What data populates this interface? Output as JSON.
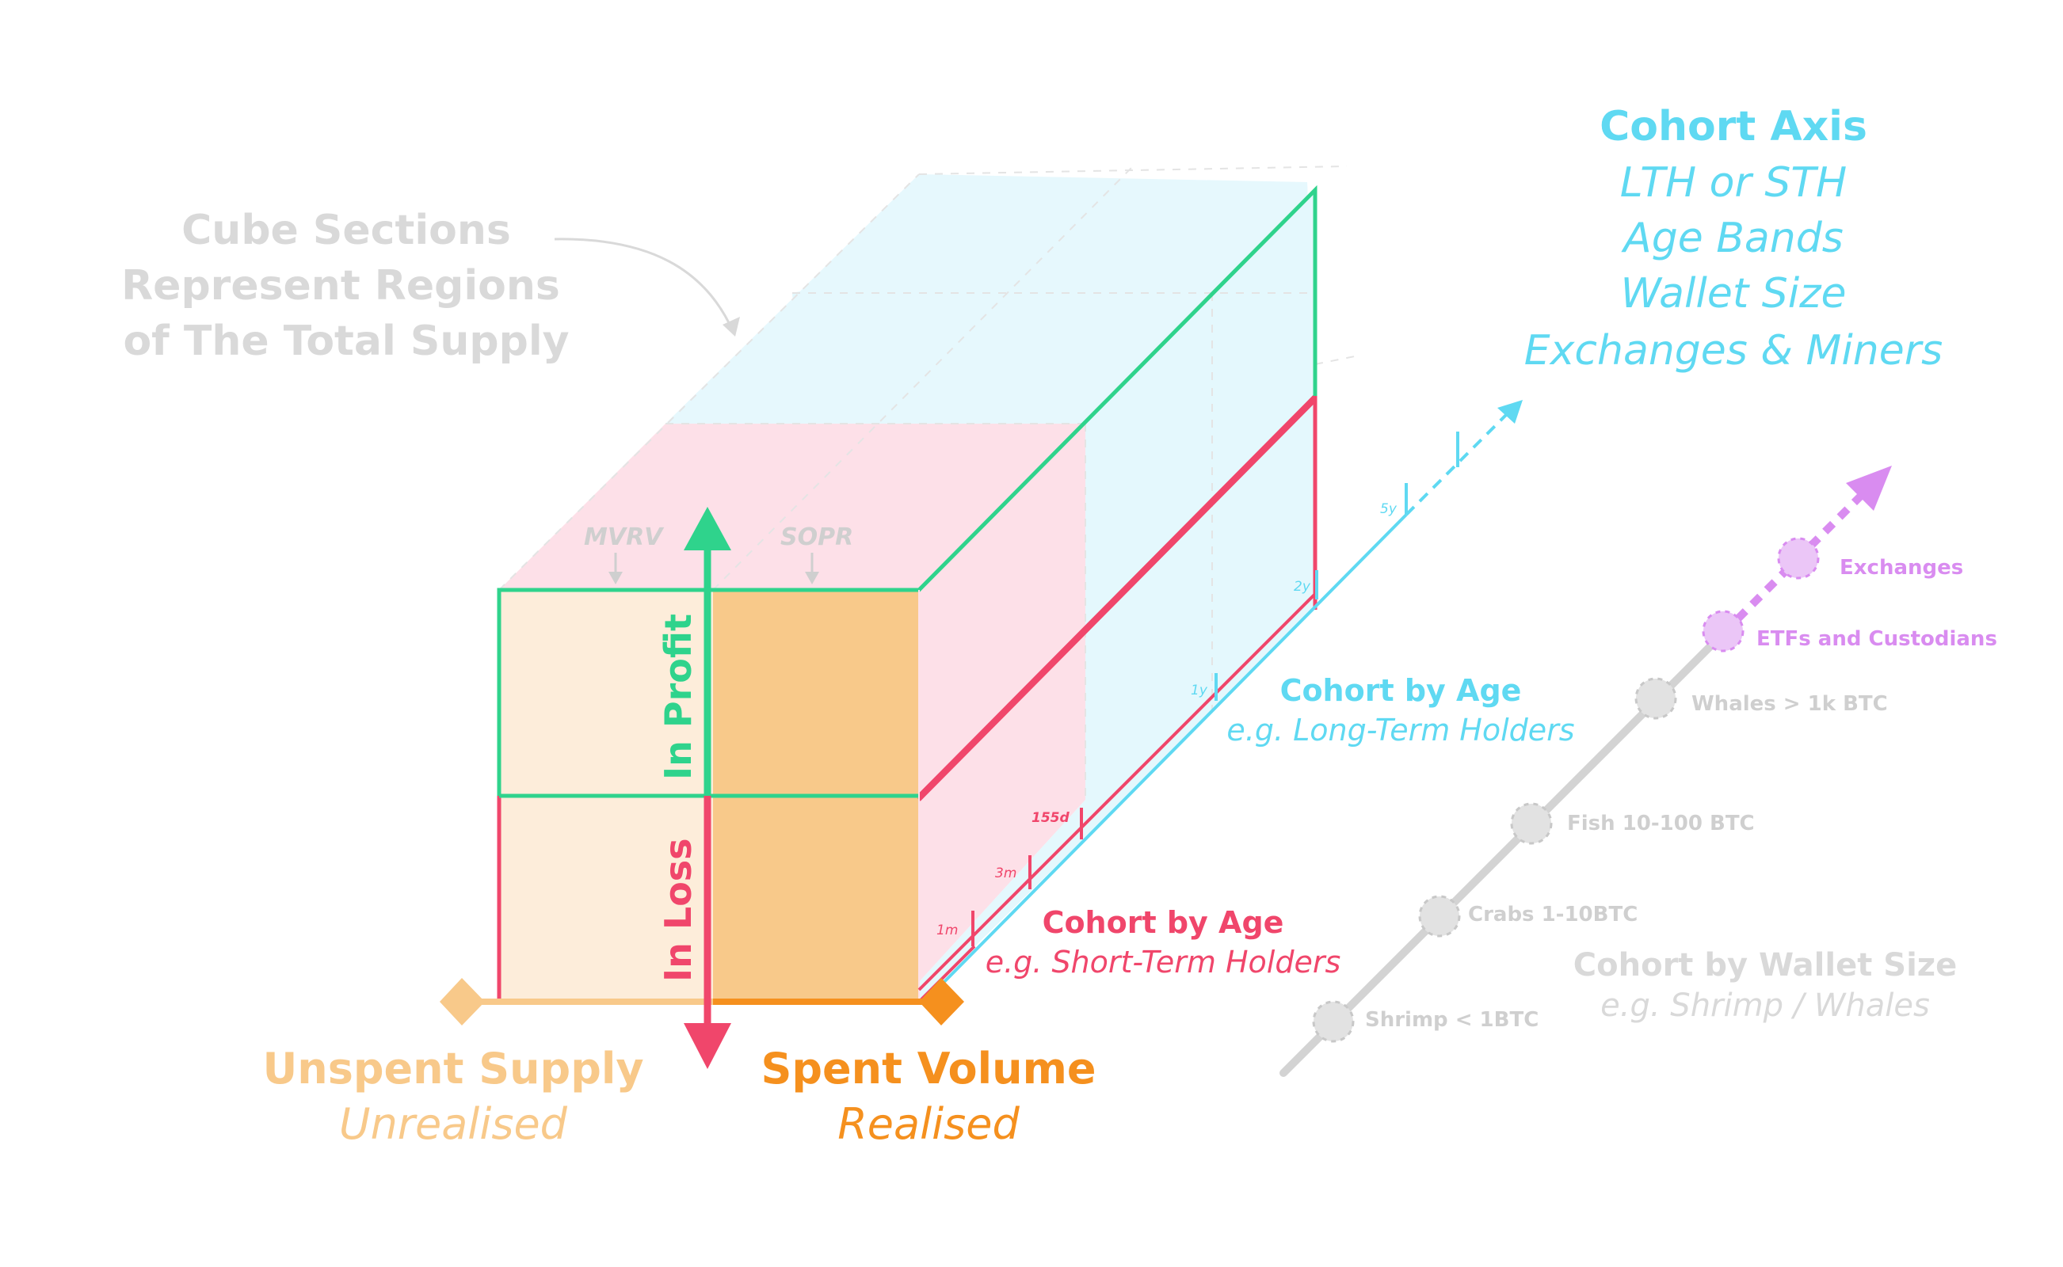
{
  "colors": {
    "green": "#2fd38c",
    "red": "#f0466b",
    "cyan": "#5fd9f2",
    "purple": "#d98cf0",
    "orange_light": "#f8c98a",
    "orange_dark": "#f5901e",
    "grey": "#cfcfcf"
  },
  "cube_sections": {
    "line1": "Cube Sections",
    "line2": "Represent Regions",
    "line3": "of The Total Supply"
  },
  "cohort_axis": {
    "title": "Cohort Axis",
    "items": [
      "LTH or STH",
      "Age Bands",
      "Wallet Size",
      "Exchanges & Miners"
    ]
  },
  "metrics": {
    "mvrv": "MVRV",
    "sopr": "SOPR"
  },
  "profit_axis": {
    "in_profit": "In Profit",
    "in_loss": "In Loss"
  },
  "supply_axis": {
    "unspent_title": "Unspent Supply",
    "unspent_sub": "Unrealised",
    "spent_title": "Spent Volume",
    "spent_sub": "Realised"
  },
  "age_ticks": {
    "short": [
      "1m",
      "3m",
      "155d"
    ],
    "long": [
      "1y",
      "2y",
      "5y"
    ]
  },
  "cohort_age_long": {
    "title": "Cohort by Age",
    "sub": "e.g. Long-Term Holders"
  },
  "cohort_age_short": {
    "title": "Cohort by Age",
    "sub": "e.g. Short-Term Holders"
  },
  "cohort_wallet": {
    "title": "Cohort by Wallet Size",
    "sub": "e.g. Shrimp / Whales",
    "items": [
      "Shrimp < 1BTC",
      "Crabs 1-10BTC",
      "Fish 10-100 BTC",
      "Whales > 1k BTC"
    ],
    "highlight_items": [
      "ETFs and Custodians",
      "Exchanges"
    ]
  }
}
